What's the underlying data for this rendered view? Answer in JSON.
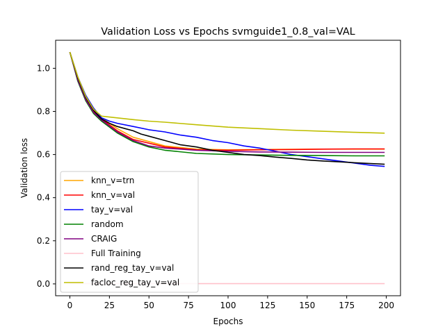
{
  "chart_data": {
    "type": "line",
    "title": "Validation Loss vs Epochs svmguide1_0.8_val=VAL",
    "xlabel": "Epochs",
    "ylabel": "Validation loss",
    "xlim": [
      -9,
      209
    ],
    "ylim": [
      -0.055,
      1.13
    ],
    "xticks": [
      0,
      25,
      50,
      75,
      100,
      125,
      150,
      175,
      200
    ],
    "yticks": [
      0.0,
      0.2,
      0.4,
      0.6,
      0.8,
      1.0
    ],
    "ytick_labels": [
      "0.0",
      "0.2",
      "0.4",
      "0.6",
      "0.8",
      "1.0"
    ],
    "grid": false,
    "legend_position": "lower-left",
    "series": [
      {
        "name": "knn_v=trn",
        "color": "#ffa500",
        "x": [
          0,
          5,
          10,
          15,
          20,
          30,
          40,
          60,
          80,
          100,
          120,
          140,
          160,
          180,
          199
        ],
        "y": [
          1.075,
          0.95,
          0.86,
          0.8,
          0.77,
          0.72,
          0.68,
          0.64,
          0.625,
          0.622,
          0.623,
          0.624,
          0.625,
          0.625,
          0.625
        ]
      },
      {
        "name": "knn_v=val",
        "color": "#ff0000",
        "x": [
          0,
          5,
          10,
          15,
          20,
          30,
          40,
          60,
          80,
          100,
          120,
          140,
          160,
          180,
          199
        ],
        "y": [
          1.075,
          0.95,
          0.86,
          0.8,
          0.765,
          0.71,
          0.67,
          0.635,
          0.622,
          0.62,
          0.622,
          0.623,
          0.625,
          0.626,
          0.626
        ]
      },
      {
        "name": "tay_v=val",
        "color": "#0000ff",
        "x": [
          0,
          5,
          10,
          15,
          20,
          25,
          30,
          40,
          50,
          60,
          70,
          80,
          90,
          100,
          110,
          120,
          130,
          140,
          150,
          160,
          170,
          180,
          190,
          199
        ],
        "y": [
          1.075,
          0.96,
          0.875,
          0.815,
          0.77,
          0.755,
          0.745,
          0.73,
          0.715,
          0.705,
          0.69,
          0.68,
          0.665,
          0.655,
          0.64,
          0.63,
          0.615,
          0.6,
          0.59,
          0.58,
          0.57,
          0.56,
          0.55,
          0.545
        ]
      },
      {
        "name": "random",
        "color": "#008000",
        "x": [
          0,
          5,
          10,
          15,
          20,
          30,
          40,
          50,
          60,
          80,
          100,
          120,
          140,
          160,
          180,
          199
        ],
        "y": [
          1.075,
          0.94,
          0.85,
          0.79,
          0.755,
          0.7,
          0.66,
          0.635,
          0.62,
          0.605,
          0.6,
          0.598,
          0.596,
          0.595,
          0.594,
          0.594
        ]
      },
      {
        "name": "CRAIG",
        "color": "#800080",
        "x": [
          0,
          5,
          10,
          15,
          20,
          30,
          40,
          50,
          60,
          80,
          100,
          120,
          140,
          160,
          180,
          199
        ],
        "y": [
          1.075,
          0.945,
          0.855,
          0.795,
          0.76,
          0.705,
          0.665,
          0.64,
          0.63,
          0.62,
          0.615,
          0.612,
          0.611,
          0.61,
          0.61,
          0.61
        ]
      },
      {
        "name": "Full Training",
        "color": "#ffc0cb",
        "x": [
          0,
          199
        ],
        "y": [
          0.001,
          0.001
        ]
      },
      {
        "name": "rand_reg_tay_v=val",
        "color": "#000000",
        "x": [
          0,
          5,
          10,
          15,
          20,
          25,
          30,
          35,
          40,
          45,
          50,
          60,
          70,
          80,
          90,
          100,
          110,
          120,
          130,
          140,
          150,
          160,
          170,
          180,
          190,
          199
        ],
        "y": [
          1.075,
          0.955,
          0.865,
          0.805,
          0.765,
          0.745,
          0.73,
          0.72,
          0.71,
          0.695,
          0.685,
          0.665,
          0.645,
          0.635,
          0.62,
          0.61,
          0.6,
          0.595,
          0.588,
          0.582,
          0.575,
          0.57,
          0.566,
          0.562,
          0.558,
          0.555
        ]
      },
      {
        "name": "facloc_reg_tay_v=val",
        "color": "#bfbf00",
        "x": [
          0,
          5,
          10,
          15,
          20,
          30,
          40,
          50,
          60,
          80,
          100,
          120,
          140,
          160,
          180,
          199
        ],
        "y": [
          1.075,
          0.96,
          0.87,
          0.81,
          0.778,
          0.77,
          0.762,
          0.755,
          0.75,
          0.738,
          0.727,
          0.72,
          0.713,
          0.708,
          0.703,
          0.699
        ]
      }
    ]
  }
}
